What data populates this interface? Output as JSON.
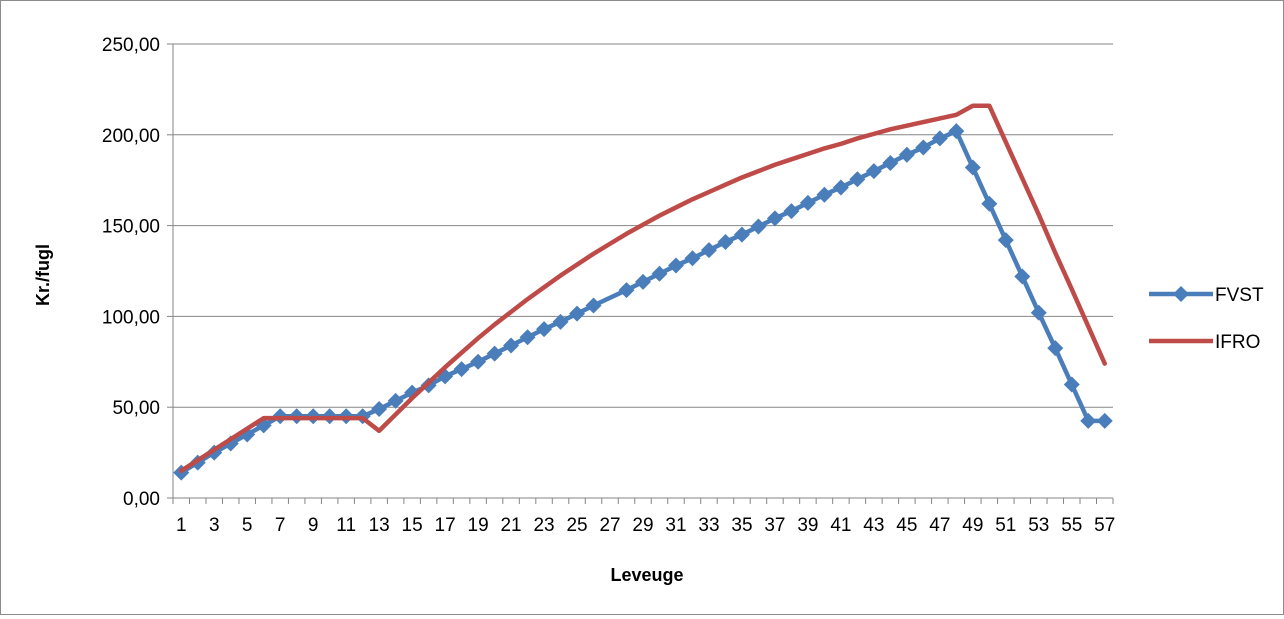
{
  "chart_data": {
    "type": "line",
    "title": "",
    "xlabel": "Leveuge",
    "ylabel": "Kr./fugl",
    "ylim": [
      0,
      250
    ],
    "yticks": [
      "0,00",
      "50,00",
      "100,00",
      "150,00",
      "200,00",
      "250,00"
    ],
    "ytick_values": [
      0,
      50,
      100,
      150,
      200,
      250
    ],
    "xlim": [
      1,
      57
    ],
    "xtick_labels": [
      "1",
      "3",
      "5",
      "7",
      "9",
      "11",
      "13",
      "15",
      "17",
      "19",
      "21",
      "23",
      "25",
      "27",
      "29",
      "31",
      "33",
      "35",
      "37",
      "39",
      "41",
      "43",
      "45",
      "47",
      "49",
      "51",
      "53",
      "55",
      "57"
    ],
    "grid": "horizontal",
    "legend_position": "right",
    "series": [
      {
        "name": "FVST",
        "color": "#4a7ebb",
        "marker": "diamond",
        "x": [
          1,
          2,
          3,
          4,
          5,
          6,
          7,
          8,
          9,
          10,
          11,
          12,
          13,
          14,
          15,
          16,
          17,
          18,
          19,
          20,
          21,
          22,
          23,
          24,
          25,
          26,
          28,
          29,
          30,
          31,
          32,
          33,
          34,
          35,
          36,
          37,
          38,
          39,
          40,
          41,
          42,
          43,
          44,
          45,
          46,
          47,
          48,
          49,
          50,
          51,
          52,
          53,
          54,
          55,
          56,
          57
        ],
        "y": [
          14,
          19.5,
          25,
          30,
          35,
          40,
          45,
          45,
          45,
          45,
          45,
          45,
          49,
          53.5,
          58,
          62,
          67,
          71,
          75,
          79.5,
          84,
          88.5,
          93,
          97,
          101.5,
          106,
          114.5,
          119,
          123.5,
          128,
          132,
          136.5,
          141,
          145,
          149.5,
          154,
          158,
          162.5,
          167,
          171,
          175.5,
          180,
          184.5,
          189,
          193,
          198,
          202,
          182,
          162,
          142,
          122,
          102,
          82.5,
          62.5,
          42.5,
          42.5
        ]
      },
      {
        "name": "IFRO",
        "color": "#be4b48",
        "marker": "none",
        "x": [
          1,
          6,
          7,
          9,
          11,
          12,
          13,
          14,
          15,
          16,
          17,
          18,
          19,
          20,
          21,
          22,
          23,
          24,
          25,
          26,
          27,
          28,
          29,
          30,
          31,
          32,
          33,
          34,
          35,
          36,
          37,
          38,
          39,
          40,
          41,
          42,
          43,
          44,
          45,
          46,
          47,
          48,
          49,
          50,
          51,
          52,
          53,
          54,
          55,
          56,
          57
        ],
        "y": [
          15,
          44,
          44,
          44,
          44,
          44,
          37,
          46,
          55,
          63.5,
          72,
          80,
          88,
          95.5,
          102.5,
          109.5,
          116,
          122.5,
          128.5,
          134.5,
          140,
          145.5,
          150.5,
          155.5,
          160,
          164.5,
          168.5,
          172.5,
          176.5,
          180,
          183.5,
          186.5,
          189.5,
          192.5,
          195,
          198,
          200.5,
          203,
          205,
          207,
          209,
          211,
          216,
          216,
          196,
          176,
          156,
          135,
          115,
          94.5,
          74
        ]
      }
    ]
  }
}
